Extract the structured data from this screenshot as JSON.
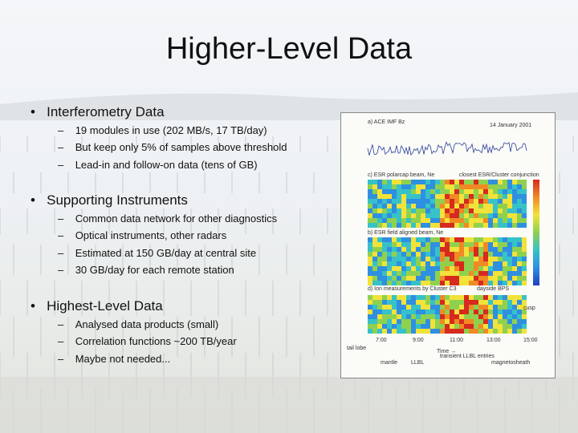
{
  "title": "Higher-Level Data",
  "bullets": [
    {
      "text": "Interferometry Data",
      "items": [
        "19 modules in use (202 MB/s, 17 TB/day)",
        "But keep only 5% of samples above threshold",
        "Lead-in and follow-on data (tens of GB)"
      ]
    },
    {
      "text": "Supporting Instruments",
      "items": [
        "Common data network for other diagnostics",
        "Optical instruments, other radars",
        "Estimated at 150 GB/day at central site",
        "30 GB/day for each remote station"
      ]
    },
    {
      "text": "Highest-Level Data",
      "items": [
        "Analysed data products (small)",
        "Correlation functions ~200 TB/year",
        "Maybe not needed..."
      ]
    }
  ],
  "figure": {
    "panel_a": "a) ACE IMF Bz",
    "date": "14 January 2001",
    "panel_c": "c) ESR polarcap beam, Ne",
    "conjunction": "closest ESR/Cluster conjunction",
    "panel_b": "b) ESR field aligned beam, Ne",
    "panel_d": "d) Ion measurements by Cluster C3",
    "dayside": "dayside BPS",
    "cusp": "cusp",
    "times": [
      "7:00",
      "9:00",
      "11:00",
      "13:00",
      "15:00"
    ],
    "time_axis": "Time →",
    "regions": [
      "tail lobe",
      "mantle",
      "LLBL",
      "transient LLBL entries",
      "magnetosheath"
    ]
  }
}
